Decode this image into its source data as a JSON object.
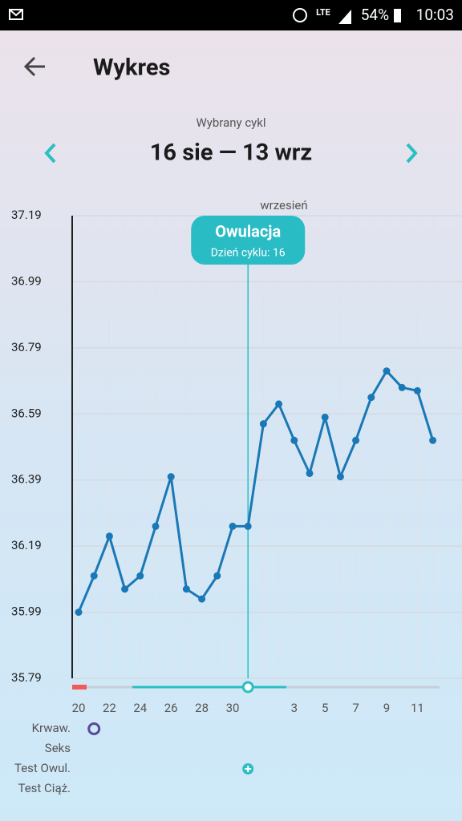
{
  "status_bar": {
    "network": "LTE",
    "battery": "54%",
    "time": "10:03"
  },
  "header": {
    "title": "Wykres"
  },
  "cycle": {
    "label": "Wybrany cykl",
    "range": "16 sie — 13 wrz"
  },
  "chart_data": {
    "type": "line",
    "month_label": "wrzesień",
    "annotation": {
      "title": "Owulacja",
      "text": "Dzień cyklu: 16"
    },
    "categories": [
      "20",
      null,
      "22",
      null,
      "24",
      null,
      "26",
      null,
      "28",
      null,
      "30",
      null,
      null,
      null,
      "3",
      null,
      "5",
      null,
      "7",
      null,
      "9",
      null,
      "11",
      null
    ],
    "series": [
      {
        "color": "#1a78b6",
        "values": [
          35.99,
          36.1,
          36.22,
          36.06,
          36.1,
          36.25,
          36.4,
          36.06,
          36.03,
          36.1,
          36.25,
          36.25,
          36.56,
          36.62,
          36.51,
          36.41,
          36.58,
          36.4,
          36.51,
          36.64,
          36.72,
          36.67,
          36.66,
          36.51
        ]
      }
    ],
    "ylim": [
      35.79,
      37.19
    ],
    "yticks": [
      35.79,
      35.99,
      36.19,
      36.39,
      36.59,
      36.79,
      36.99,
      37.19
    ],
    "grid": true,
    "event_labels": [
      "Krwaw.",
      "Seks",
      "Test Owul.",
      "Test Ciąż."
    ]
  }
}
